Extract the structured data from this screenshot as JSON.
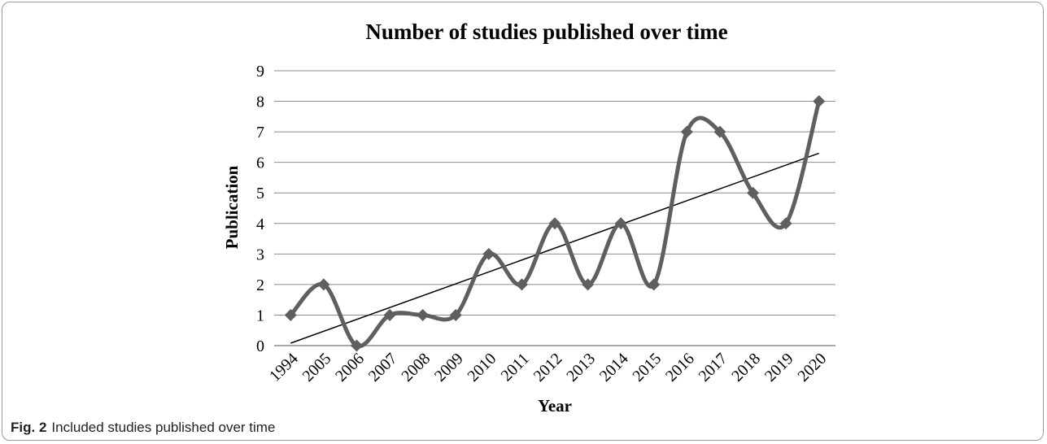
{
  "chart_data": {
    "type": "line",
    "title": "Number of studies published over time",
    "xlabel": "Year",
    "ylabel": "Publication",
    "categories": [
      "1994",
      "2005",
      "2006",
      "2007",
      "2008",
      "2009",
      "2010",
      "2011",
      "2012",
      "2013",
      "2014",
      "2015",
      "2016",
      "2017",
      "2018",
      "2019",
      "2020"
    ],
    "series": [
      {
        "values": [
          1,
          2,
          0,
          1,
          1,
          1,
          3,
          2,
          4,
          2,
          4,
          2,
          7,
          7,
          5,
          4,
          8
        ]
      }
    ],
    "trendline": {
      "type": "linear",
      "start": 0.08,
      "end": 6.3
    },
    "ylim": [
      0,
      9
    ],
    "yticks": [
      0,
      1,
      2,
      3,
      4,
      5,
      6,
      7,
      8,
      9
    ],
    "grid": true,
    "legend": "none",
    "colors": {
      "series": "#5f5f5f",
      "trendline": "#000000",
      "grid": "#8c8c8c"
    }
  },
  "caption": {
    "label": "Fig. 2",
    "text": "Included studies published over time"
  }
}
